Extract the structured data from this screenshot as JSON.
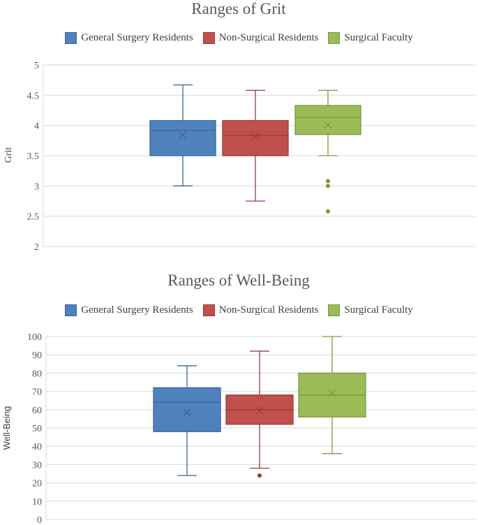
{
  "chart_data": [
    {
      "id": "grit",
      "type": "boxplot",
      "title": "Ranges of Grit",
      "ylabel": "Grit",
      "xlabel": "",
      "ylim": [
        2,
        5
      ],
      "yticks": [
        "2",
        "2.5",
        "3",
        "3.5",
        "4",
        "4.5",
        "5"
      ],
      "legend_position": "top",
      "series": [
        {
          "name": "General Surgery Residents",
          "color": "#4f81bd",
          "stroke": "#3a6699",
          "min": 3.0,
          "q1": 3.5,
          "median": 3.92,
          "q3": 4.08,
          "max": 4.67,
          "mean": 3.84,
          "outliers": []
        },
        {
          "name": "Non-Surgical Residents",
          "color": "#c0504d",
          "stroke": "#9c3a37",
          "min": 2.75,
          "q1": 3.5,
          "median": 3.83,
          "q3": 4.08,
          "max": 4.58,
          "mean": 3.82,
          "outliers": []
        },
        {
          "name": "Surgical Faculty",
          "color": "#9bbb59",
          "stroke": "#7a9a3c",
          "min": 3.5,
          "q1": 3.85,
          "median": 4.13,
          "q3": 4.33,
          "max": 4.58,
          "mean": 4.01,
          "outliers": [
            3.08,
            3.0,
            2.58
          ]
        }
      ]
    },
    {
      "id": "wb",
      "type": "boxplot",
      "title": "Ranges of Well-Being",
      "ylabel": "Well-Being",
      "xlabel": "",
      "ylim": [
        0,
        100
      ],
      "yticks": [
        "0",
        "10",
        "20",
        "30",
        "40",
        "50",
        "60",
        "70",
        "80",
        "90",
        "100"
      ],
      "legend_position": "top",
      "series": [
        {
          "name": "General Surgery Residents",
          "color": "#4f81bd",
          "stroke": "#3a6699",
          "min": 24,
          "q1": 48,
          "median": 64,
          "q3": 72,
          "max": 84,
          "mean": 58.5,
          "outliers": []
        },
        {
          "name": "Non-Surgical Residents",
          "color": "#c0504d",
          "stroke": "#9c3a37",
          "min": 28,
          "q1": 52,
          "median": 60,
          "q3": 68,
          "max": 92,
          "mean": 59.5,
          "outliers": [
            24
          ]
        },
        {
          "name": "Surgical Faculty",
          "color": "#9bbb59",
          "stroke": "#7a9a3c",
          "min": 36,
          "q1": 56,
          "median": 68,
          "q3": 80,
          "max": 100,
          "mean": 69,
          "outliers": []
        }
      ]
    }
  ]
}
